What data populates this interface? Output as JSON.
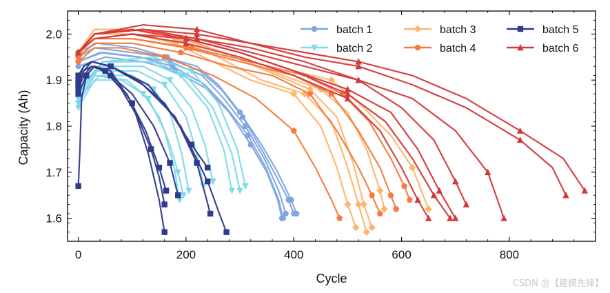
{
  "chart_data": {
    "type": "line",
    "title": "",
    "xlabel": "Cycle",
    "ylabel": "Capacity (Ah)",
    "xlim": [
      -20,
      960
    ],
    "ylim": [
      1.55,
      2.05
    ],
    "xticks": [
      0,
      200,
      400,
      600,
      800
    ],
    "yticks": [
      1.6,
      1.7,
      1.8,
      1.9,
      2.0
    ],
    "xtick_labels": [
      "0",
      "200",
      "400",
      "600",
      "800"
    ],
    "ytick_labels": [
      "1.6",
      "1.7",
      "1.8",
      "1.9",
      "2.0"
    ],
    "legend": {
      "placement": "top-right",
      "columns": 3
    },
    "series": [
      {
        "name": "batch 1",
        "color": "#7fa6df",
        "marker": "circle",
        "curves": [
          {
            "x": [
              0,
              30,
              100,
              160,
              220,
              260,
              300,
              340,
              370,
              395,
              405
            ],
            "y": [
              1.95,
              1.97,
              1.96,
              1.95,
              1.93,
              1.89,
              1.83,
              1.76,
              1.7,
              1.64,
              1.61
            ]
          },
          {
            "x": [
              0,
              40,
              110,
              170,
              230,
              270,
              310,
              345,
              372,
              385
            ],
            "y": [
              1.94,
              1.96,
              1.95,
              1.94,
              1.91,
              1.86,
              1.8,
              1.73,
              1.66,
              1.61
            ]
          },
          {
            "x": [
              0,
              50,
              120,
              180,
              240,
              280,
              320,
              350,
              370,
              378
            ],
            "y": [
              1.93,
              1.95,
              1.94,
              1.92,
              1.88,
              1.83,
              1.76,
              1.7,
              1.64,
              1.6
            ]
          },
          {
            "x": [
              0,
              35,
              105,
              165,
              225,
              265,
              305,
              340,
              368,
              390,
              400
            ],
            "y": [
              1.96,
              1.98,
              1.97,
              1.95,
              1.92,
              1.88,
              1.82,
              1.75,
              1.69,
              1.64,
              1.61
            ]
          },
          {
            "x": [
              0,
              45,
              115,
              175,
              235,
              275,
              315,
              348,
              372,
              380
            ],
            "y": [
              1.94,
              1.96,
              1.95,
              1.93,
              1.89,
              1.84,
              1.78,
              1.71,
              1.64,
              1.6
            ]
          }
        ]
      },
      {
        "name": "batch 2",
        "color": "#7fd9ea",
        "marker": "triangle-down",
        "curves": [
          {
            "x": [
              0,
              30,
              80,
              120,
              150,
              170,
              185,
              195
            ],
            "y": [
              1.84,
              1.9,
              1.9,
              1.87,
              1.82,
              1.76,
              1.7,
              1.65
            ]
          },
          {
            "x": [
              0,
              40,
              100,
              140,
              170,
              192,
              205
            ],
            "y": [
              1.86,
              1.91,
              1.91,
              1.88,
              1.83,
              1.74,
              1.66
            ]
          },
          {
            "x": [
              0,
              40,
              120,
              170,
              210,
              235,
              250
            ],
            "y": [
              1.87,
              1.93,
              1.93,
              1.9,
              1.84,
              1.76,
              1.68
            ]
          },
          {
            "x": [
              0,
              45,
              130,
              190,
              240,
              270,
              285
            ],
            "y": [
              1.88,
              1.94,
              1.94,
              1.91,
              1.84,
              1.75,
              1.66
            ]
          },
          {
            "x": [
              0,
              45,
              140,
              200,
              250,
              285,
              300
            ],
            "y": [
              1.87,
              1.94,
              1.94,
              1.91,
              1.84,
              1.74,
              1.66
            ]
          },
          {
            "x": [
              0,
              45,
              140,
              210,
              260,
              295,
              310
            ],
            "y": [
              1.88,
              1.94,
              1.95,
              1.92,
              1.85,
              1.75,
              1.67
            ]
          },
          {
            "x": [
              0,
              35,
              110,
              160,
              200,
              220,
              232
            ],
            "y": [
              1.85,
              1.92,
              1.92,
              1.89,
              1.82,
              1.74,
              1.67
            ]
          },
          {
            "x": [
              0,
              30,
              90,
              130,
              160,
              178,
              188
            ],
            "y": [
              1.86,
              1.91,
              1.9,
              1.86,
              1.79,
              1.71,
              1.64
            ]
          }
        ]
      },
      {
        "name": "batch 3",
        "color": "#fdb56d",
        "marker": "diamond",
        "curves": [
          {
            "x": [
              0,
              30,
              100,
              180,
              250,
              320,
              400,
              450,
              480,
              500,
              515
            ],
            "y": [
              1.95,
              2.0,
              2.0,
              1.98,
              1.94,
              1.9,
              1.87,
              1.8,
              1.71,
              1.63,
              1.58
            ]
          },
          {
            "x": [
              0,
              30,
              100,
              180,
              260,
              340,
              420,
              470,
              500,
              520,
              535
            ],
            "y": [
              1.95,
              2.0,
              2.01,
              1.99,
              1.95,
              1.9,
              1.87,
              1.81,
              1.71,
              1.63,
              1.57
            ]
          },
          {
            "x": [
              0,
              30,
              100,
              190,
              270,
              350,
              430,
              480,
              510,
              530,
              545
            ],
            "y": [
              1.95,
              2.0,
              2.01,
              1.99,
              1.96,
              1.92,
              1.88,
              1.82,
              1.72,
              1.63,
              1.58
            ]
          },
          {
            "x": [
              0,
              30,
              100,
              200,
              290,
              380,
              450,
              500,
              535,
              560,
              568
            ],
            "y": [
              1.96,
              2.01,
              2.01,
              1.99,
              1.95,
              1.91,
              1.88,
              1.83,
              1.75,
              1.66,
              1.62
            ]
          },
          {
            "x": [
              0,
              30,
              100,
              200,
              300,
              400,
              470,
              530,
              580,
              620,
              640,
              650
            ],
            "y": [
              1.96,
              2.01,
              2.01,
              1.99,
              1.96,
              1.92,
              1.9,
              1.84,
              1.78,
              1.71,
              1.65,
              1.62
            ]
          }
        ]
      },
      {
        "name": "batch 4",
        "color": "#f47a3f",
        "marker": "pentagon",
        "curves": [
          {
            "x": [
              0,
              30,
              80,
              160,
              250,
              330,
              400,
              440,
              470,
              485
            ],
            "y": [
              1.94,
              1.97,
              1.97,
              1.95,
              1.91,
              1.86,
              1.79,
              1.71,
              1.64,
              1.6
            ]
          },
          {
            "x": [
              0,
              30,
              100,
              190,
              280,
              360,
              430,
              480,
              520,
              545,
              560
            ],
            "y": [
              1.95,
              1.98,
              1.98,
              1.96,
              1.93,
              1.91,
              1.87,
              1.79,
              1.71,
              1.65,
              1.61
            ]
          },
          {
            "x": [
              0,
              30,
              100,
              200,
              300,
              400,
              470,
              520,
              560,
              580,
              590
            ],
            "y": [
              1.96,
              1.99,
              1.99,
              1.97,
              1.94,
              1.91,
              1.87,
              1.79,
              1.71,
              1.65,
              1.62
            ]
          },
          {
            "x": [
              0,
              30,
              100,
              210,
              320,
              420,
              490,
              540,
              580,
              605,
              615
            ],
            "y": [
              1.96,
              1.99,
              1.99,
              1.97,
              1.94,
              1.91,
              1.87,
              1.81,
              1.73,
              1.67,
              1.64
            ]
          }
        ]
      },
      {
        "name": "batch 5",
        "color": "#2e3a8c",
        "marker": "square",
        "curves": [
          {
            "x": [
              0,
              3,
              6,
              15,
              30,
              60,
              100,
              130,
              150,
              160
            ],
            "y": [
              1.67,
              1.75,
              1.86,
              1.91,
              1.93,
              1.92,
              1.85,
              1.74,
              1.64,
              1.57
            ]
          },
          {
            "x": [
              0,
              10,
              25,
              50,
              80,
              110,
              135,
              150,
              160
            ],
            "y": [
              1.88,
              1.91,
              1.93,
              1.92,
              1.88,
              1.82,
              1.75,
              1.69,
              1.63
            ]
          },
          {
            "x": [
              0,
              10,
              25,
              50,
              90,
              125,
              150,
              163
            ],
            "y": [
              1.89,
              1.92,
              1.93,
              1.92,
              1.87,
              1.79,
              1.71,
              1.66
            ]
          },
          {
            "x": [
              0,
              10,
              25,
              60,
              110,
              160,
              210,
              240
            ],
            "y": [
              1.9,
              1.93,
              1.94,
              1.93,
              1.9,
              1.85,
              1.76,
              1.71
            ]
          },
          {
            "x": [
              0,
              10,
              25,
              60,
              120,
              180,
              220,
              245
            ],
            "y": [
              1.91,
              1.93,
              1.94,
              1.93,
              1.89,
              1.82,
              1.72,
              1.61
            ]
          },
          {
            "x": [
              0,
              10,
              25,
              60,
              130,
              190,
              240,
              265,
              275
            ],
            "y": [
              1.89,
              1.92,
              1.94,
              1.93,
              1.89,
              1.8,
              1.68,
              1.6,
              1.57
            ]
          },
          {
            "x": [
              0,
              15,
              30,
              60,
              100,
              140,
              170,
              185
            ],
            "y": [
              1.87,
              1.91,
              1.93,
              1.91,
              1.87,
              1.8,
              1.72,
              1.65
            ]
          }
        ]
      },
      {
        "name": "batch 6",
        "color": "#d4393a",
        "marker": "triangle-up",
        "curves": [
          {
            "x": [
              0,
              30,
              100,
              200,
              300,
              400,
              500,
              560,
              600,
              630,
              650
            ],
            "y": [
              1.96,
              1.99,
              2.0,
              1.98,
              1.95,
              1.91,
              1.86,
              1.79,
              1.71,
              1.64,
              1.6
            ]
          },
          {
            "x": [
              0,
              30,
              100,
              200,
              300,
              400,
              500,
              570,
              620,
              660,
              690
            ],
            "y": [
              1.96,
              1.99,
              2.0,
              1.99,
              1.96,
              1.92,
              1.87,
              1.81,
              1.73,
              1.65,
              1.6
            ]
          },
          {
            "x": [
              0,
              30,
              100,
              200,
              300,
              400,
              500,
              580,
              630,
              670,
              700
            ],
            "y": [
              1.96,
              2.0,
              2.01,
              1.99,
              1.96,
              1.92,
              1.88,
              1.83,
              1.75,
              1.66,
              1.6
            ]
          },
          {
            "x": [
              0,
              30,
              120,
              220,
              320,
              420,
              520,
              600,
              660,
              700,
              720
            ],
            "y": [
              1.96,
              2.0,
              2.01,
              1.99,
              1.96,
              1.93,
              1.9,
              1.84,
              1.77,
              1.68,
              1.63
            ]
          },
          {
            "x": [
              0,
              30,
              120,
              220,
              320,
              420,
              520,
              620,
              700,
              760,
              790
            ],
            "y": [
              1.96,
              2.0,
              2.01,
              1.99,
              1.97,
              1.94,
              1.9,
              1.86,
              1.79,
              1.7,
              1.6
            ]
          },
          {
            "x": [
              0,
              30,
              120,
              220,
              320,
              420,
              520,
              620,
              720,
              820,
              880,
              905
            ],
            "y": [
              1.96,
              2.0,
              2.01,
              2.0,
              1.98,
              1.95,
              1.93,
              1.89,
              1.84,
              1.77,
              1.71,
              1.65
            ]
          },
          {
            "x": [
              0,
              30,
              120,
              220,
              320,
              420,
              520,
              620,
              720,
              820,
              900,
              940
            ],
            "y": [
              1.96,
              2.0,
              2.02,
              2.01,
              1.98,
              1.96,
              1.94,
              1.91,
              1.86,
              1.79,
              1.73,
              1.66
            ]
          }
        ]
      }
    ]
  },
  "watermark": "CSDN @【建模先锋】"
}
